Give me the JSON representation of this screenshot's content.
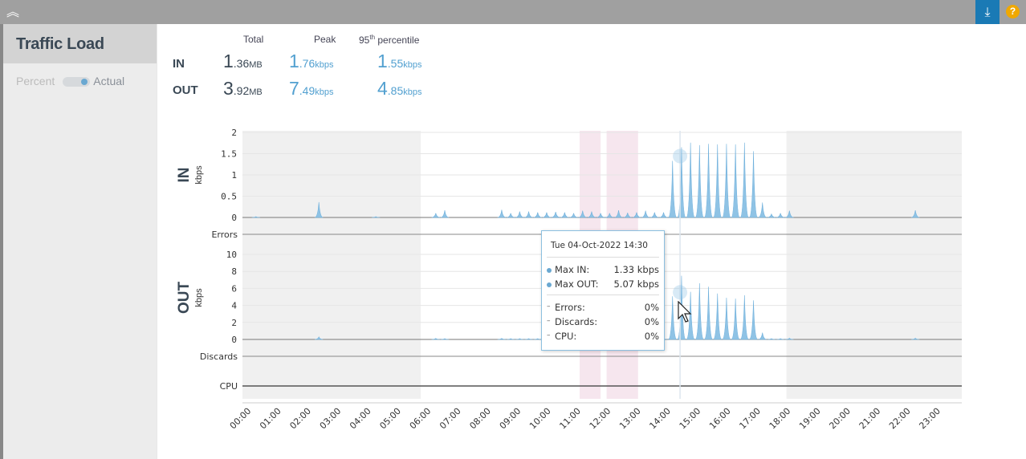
{
  "window": {
    "collapse_icon": "chevron-double-up-icon",
    "download_icon": "download-icon",
    "help_label": "?"
  },
  "sidebar": {
    "title": "Traffic Load",
    "toggle_left": "Percent",
    "toggle_right": "Actual"
  },
  "stats": {
    "headers": {
      "total": "Total",
      "peak": "Peak",
      "p95_prefix": "95",
      "p95_sup": "th",
      "p95_suffix": " percentile"
    },
    "rows": [
      {
        "label": "IN",
        "total_int": "1",
        "total_dec": ".36",
        "total_unit": "MB",
        "peak_int": "1",
        "peak_dec": ".76",
        "peak_unit": "kbps",
        "p95_int": "1",
        "p95_dec": ".55",
        "p95_unit": "kbps"
      },
      {
        "label": "OUT",
        "total_int": "3",
        "total_dec": ".92",
        "total_unit": "MB",
        "peak_int": "7",
        "peak_dec": ".49",
        "peak_unit": "kbps",
        "p95_int": "4",
        "p95_dec": ".85",
        "p95_unit": "kbps"
      }
    ]
  },
  "chart_data": {
    "type": "area",
    "x_hours": [
      0.45,
      2.55,
      4.45,
      6.45,
      6.75,
      8.65,
      8.95,
      9.25,
      9.55,
      9.85,
      10.15,
      10.45,
      10.75,
      11.05,
      11.35,
      11.65,
      11.95,
      12.25,
      12.55,
      12.85,
      13.15,
      13.45,
      13.75,
      14.05,
      14.35,
      14.65,
      14.95,
      15.25,
      15.55,
      15.85,
      16.15,
      16.45,
      16.75,
      17.05,
      17.35,
      17.65,
      17.95,
      18.25,
      18.55,
      18.85,
      22.45
    ],
    "in_values": [
      0.02,
      0.36,
      0.02,
      0.1,
      0.17,
      0.18,
      0.1,
      0.14,
      0.14,
      0.12,
      0.12,
      0.13,
      0.12,
      0.1,
      0.16,
      0.14,
      0.1,
      0.1,
      0.17,
      0.11,
      0.12,
      0.16,
      0.12,
      0.12,
      1.33,
      1.65,
      1.76,
      1.7,
      1.73,
      1.72,
      1.73,
      1.72,
      1.76,
      1.56,
      0.35,
      0.08,
      0.1,
      0.16,
      0,
      0,
      0.17
    ],
    "out_values": [
      0,
      0.3,
      0,
      0.12,
      0.1,
      0.12,
      0.1,
      0.1,
      0.1,
      0.1,
      0.1,
      0.1,
      0.1,
      0.1,
      0.1,
      0.1,
      0.1,
      0.1,
      0.1,
      0.1,
      0.1,
      0.1,
      0.1,
      0.1,
      5.07,
      7.49,
      5.6,
      6.6,
      6.2,
      5.4,
      4.9,
      4.8,
      5.2,
      4.6,
      0.8,
      0.1,
      0.1,
      0.15,
      0,
      0,
      0.15
    ],
    "in_axis": {
      "label": "IN",
      "unit": "kbps",
      "ylim": [
        0,
        2
      ],
      "ticks": [
        "0",
        "0.5",
        "1",
        "1.5",
        "2"
      ]
    },
    "out_axis": {
      "label": "OUT",
      "unit": "kbps",
      "ylim": [
        0,
        10
      ],
      "ticks": [
        "0",
        "2",
        "4",
        "6",
        "8",
        "10"
      ]
    },
    "row_labels": {
      "errors": "Errors",
      "discards": "Discards",
      "cpu": "CPU"
    },
    "x_ticks": [
      "00:00",
      "01:00",
      "02:00",
      "03:00",
      "04:00",
      "05:00",
      "06:00",
      "07:00",
      "08:00",
      "09:00",
      "10:00",
      "11:00",
      "12:00",
      "13:00",
      "14:00",
      "15:00",
      "16:00",
      "17:00",
      "18:00",
      "19:00",
      "20:00",
      "21:00",
      "22:00",
      "23:00"
    ],
    "gray_ranges_hours": [
      [
        0,
        5.95
      ],
      [
        18.15,
        24
      ]
    ],
    "pink_ranges_hours": [
      [
        11.25,
        11.95
      ],
      [
        12.15,
        13.2
      ]
    ],
    "hover_hour": 14.6
  },
  "tooltip": {
    "date": "Tue 04-Oct-2022 14:30",
    "rows": [
      {
        "label": "Max IN:",
        "value": "1.33 kbps"
      },
      {
        "label": "Max OUT:",
        "value": "5.07 kbps"
      }
    ],
    "extra": [
      {
        "label": "Errors:",
        "value": "0%"
      },
      {
        "label": "Discards:",
        "value": "0%"
      },
      {
        "label": "CPU:",
        "value": "0%"
      }
    ]
  },
  "colors": {
    "series": "#8fc3e5",
    "gray_band": "#f0f0f0",
    "pink_band": "#f6e6ee",
    "accent": "#1a7ab5",
    "help": "#f0a800"
  }
}
